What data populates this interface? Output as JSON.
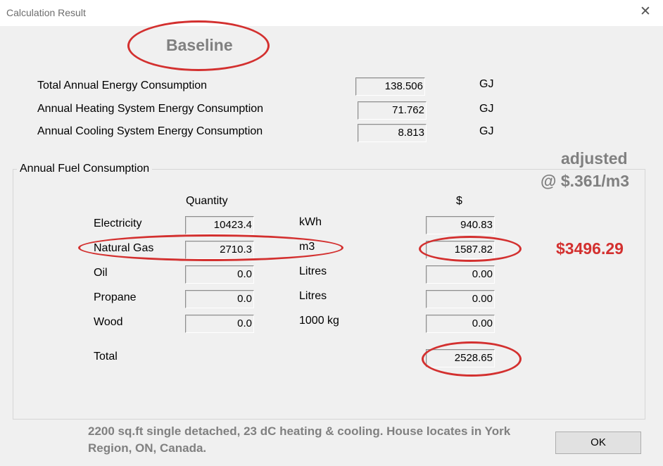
{
  "window": {
    "title": "Calculation Result",
    "close_glyph": "✕"
  },
  "annotations": {
    "baseline": "Baseline",
    "adjusted_line1": "adjusted",
    "adjusted_line2": "@ $.361/m3",
    "adjusted_total": "$3496.29",
    "footnote": "2200 sq.ft single detached, 23 dC heating & cooling. House locates in York Region, ON, Canada.",
    "ink_color": "#d3302f",
    "gray_color": "#808080"
  },
  "energy": [
    {
      "label": "Total Annual Energy Consumption",
      "value": "138.506",
      "unit": "GJ"
    },
    {
      "label": "Annual Heating System Energy Consumption",
      "value": "71.762",
      "unit": "GJ"
    },
    {
      "label": "Annual Cooling System Energy Consumption",
      "value": "8.813",
      "unit": "GJ"
    }
  ],
  "fuel": {
    "group_title": "Annual Fuel Consumption",
    "quantity_header": "Quantity",
    "cost_header": "$",
    "rows": [
      {
        "label": "Electricity",
        "quantity": "10423.4",
        "unit": "kWh",
        "cost": "940.83"
      },
      {
        "label": "Natural Gas",
        "quantity": "2710.3",
        "unit": "m3",
        "cost": "1587.82"
      },
      {
        "label": "Oil",
        "quantity": "0.0",
        "unit": "Litres",
        "cost": "0.00"
      },
      {
        "label": "Propane",
        "quantity": "0.0",
        "unit": "Litres",
        "cost": "0.00"
      },
      {
        "label": "Wood",
        "quantity": "0.0",
        "unit": "1000 kg",
        "cost": "0.00"
      }
    ],
    "total_label": "Total",
    "total_cost": "2528.65"
  },
  "buttons": {
    "ok": "OK"
  }
}
